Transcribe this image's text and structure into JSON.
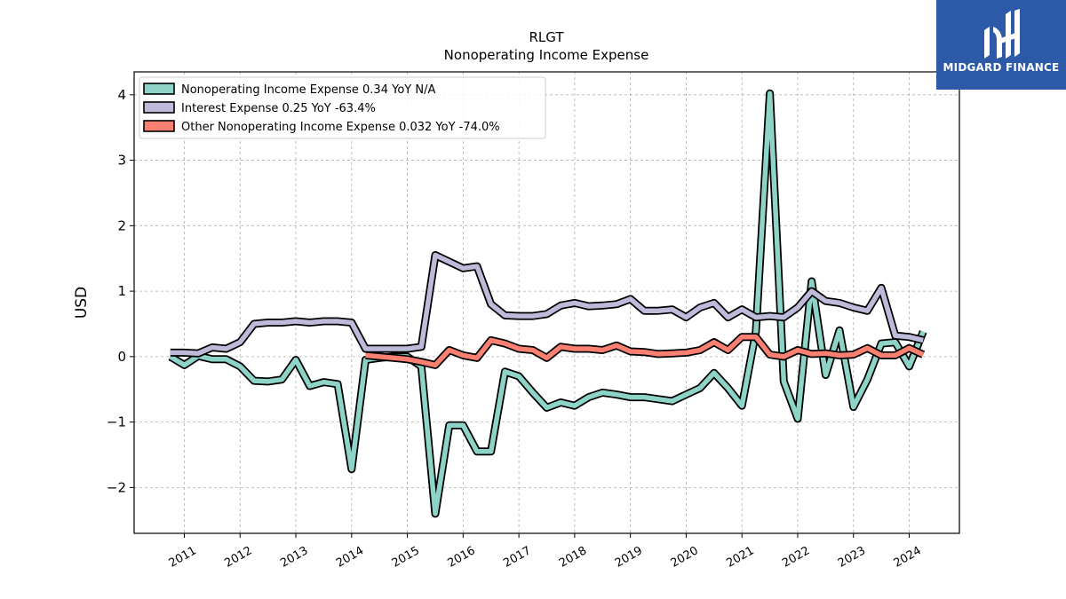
{
  "chart_data": {
    "type": "line",
    "ticker": "RLGT",
    "title": "Nonoperating Income Expense",
    "ylabel": "USD",
    "xlabel": "",
    "xlim": [
      2010.1,
      2024.9
    ],
    "ylim": [
      -2.7,
      4.35
    ],
    "yticks": [
      -2,
      -1,
      0,
      1,
      2,
      3,
      4
    ],
    "ytick_labels": [
      "−2",
      "−1",
      "0",
      "1",
      "2",
      "3",
      "4"
    ],
    "xticks": [
      2011,
      2012,
      2013,
      2014,
      2015,
      2016,
      2017,
      2018,
      2019,
      2020,
      2021,
      2022,
      2023,
      2024
    ],
    "xtick_labels": [
      "2011",
      "2012",
      "2013",
      "2014",
      "2015",
      "2016",
      "2017",
      "2018",
      "2019",
      "2020",
      "2021",
      "2022",
      "2023",
      "2024"
    ],
    "grid": true,
    "legend_position": "top-left",
    "series": [
      {
        "name": "Nonoperating Income Expense",
        "legend_label": "Nonoperating Income Expense  0.34 YoY N/A",
        "color": "#8dd3c7",
        "x": [
          2010.75,
          2011.0,
          2011.25,
          2011.5,
          2011.75,
          2012.0,
          2012.25,
          2012.5,
          2012.75,
          2013.0,
          2013.25,
          2013.5,
          2013.75,
          2014.0,
          2014.25,
          2014.5,
          2014.75,
          2015.0,
          2015.25,
          2015.5,
          2015.75,
          2016.0,
          2016.25,
          2016.5,
          2016.75,
          2017.0,
          2017.25,
          2017.5,
          2017.75,
          2018.0,
          2018.25,
          2018.5,
          2018.75,
          2019.0,
          2019.25,
          2019.5,
          2019.75,
          2020.0,
          2020.25,
          2020.5,
          2020.75,
          2021.0,
          2021.25,
          2021.5,
          2021.75,
          2022.0,
          2022.25,
          2022.5,
          2022.75,
          2023.0,
          2023.25,
          2023.5,
          2023.75,
          2024.0,
          2024.25
        ],
        "y": [
          0.0,
          -0.13,
          0.01,
          -0.04,
          -0.04,
          -0.15,
          -0.37,
          -0.38,
          -0.35,
          -0.05,
          -0.45,
          -0.39,
          -0.42,
          -1.72,
          -0.05,
          -0.02,
          0.0,
          0.0,
          -0.15,
          -2.4,
          -1.05,
          -1.05,
          -1.45,
          -1.45,
          -0.23,
          -0.3,
          -0.55,
          -0.78,
          -0.7,
          -0.75,
          -0.62,
          -0.55,
          -0.58,
          -0.62,
          -0.62,
          -0.65,
          -0.68,
          -0.58,
          -0.48,
          -0.25,
          -0.48,
          -0.75,
          0.38,
          4.02,
          -0.38,
          -0.95,
          1.15,
          -0.28,
          0.4,
          -0.77,
          -0.35,
          0.2,
          0.22,
          -0.15,
          0.38
        ]
      },
      {
        "name": "Interest Expense",
        "legend_label": "Interest Expense  0.25 YoY -63.4%",
        "color": "#bebada",
        "x": [
          2010.75,
          2011.0,
          2011.25,
          2011.5,
          2011.75,
          2012.0,
          2012.25,
          2012.5,
          2012.75,
          2013.0,
          2013.25,
          2013.5,
          2013.75,
          2014.0,
          2014.25,
          2014.5,
          2014.75,
          2015.0,
          2015.25,
          2015.5,
          2015.75,
          2016.0,
          2016.25,
          2016.5,
          2016.75,
          2017.0,
          2017.25,
          2017.5,
          2017.75,
          2018.0,
          2018.25,
          2018.5,
          2018.75,
          2019.0,
          2019.25,
          2019.5,
          2019.75,
          2020.0,
          2020.25,
          2020.5,
          2020.75,
          2021.0,
          2021.25,
          2021.5,
          2021.75,
          2022.0,
          2022.25,
          2022.5,
          2022.75,
          2023.0,
          2023.25,
          2023.5,
          2023.75,
          2024.0,
          2024.25
        ],
        "y": [
          0.06,
          0.06,
          0.05,
          0.14,
          0.12,
          0.22,
          0.5,
          0.52,
          0.52,
          0.54,
          0.52,
          0.54,
          0.54,
          0.52,
          0.12,
          0.12,
          0.12,
          0.12,
          0.15,
          1.55,
          1.45,
          1.35,
          1.38,
          0.8,
          0.63,
          0.62,
          0.62,
          0.65,
          0.78,
          0.82,
          0.77,
          0.78,
          0.8,
          0.88,
          0.7,
          0.7,
          0.72,
          0.6,
          0.75,
          0.82,
          0.6,
          0.72,
          0.6,
          0.62,
          0.6,
          0.75,
          1.0,
          0.85,
          0.82,
          0.75,
          0.7,
          1.05,
          0.32,
          0.3,
          0.25
        ]
      },
      {
        "name": "Other Nonoperating Income Expense",
        "legend_label": "Other Nonoperating Income Expense  0.032 YoY -74.0%",
        "color": "#fb8072",
        "x": [
          2014.25,
          2014.5,
          2014.75,
          2015.0,
          2015.25,
          2015.5,
          2015.75,
          2016.0,
          2016.25,
          2016.5,
          2016.75,
          2017.0,
          2017.25,
          2017.5,
          2017.75,
          2018.0,
          2018.25,
          2018.5,
          2018.75,
          2019.0,
          2019.25,
          2019.5,
          2019.75,
          2020.0,
          2020.25,
          2020.5,
          2020.75,
          2021.0,
          2021.25,
          2021.5,
          2021.75,
          2022.0,
          2022.25,
          2022.5,
          2022.75,
          2023.0,
          2023.25,
          2023.5,
          2023.75,
          2024.0,
          2024.25
        ],
        "y": [
          0.02,
          0.0,
          -0.02,
          -0.04,
          -0.08,
          -0.13,
          0.1,
          0.02,
          -0.02,
          0.25,
          0.2,
          0.12,
          0.1,
          -0.02,
          0.15,
          0.12,
          0.12,
          0.1,
          0.17,
          0.08,
          0.07,
          0.04,
          0.05,
          0.06,
          0.1,
          0.22,
          0.1,
          0.3,
          0.3,
          0.03,
          0.0,
          0.1,
          0.04,
          0.05,
          0.02,
          0.03,
          0.13,
          0.02,
          0.02,
          0.13,
          0.03
        ]
      }
    ]
  },
  "logo": {
    "text": "MIDGARD FINANCE",
    "bg_color": "#2c5aa8",
    "text_color": "#ffffff"
  }
}
